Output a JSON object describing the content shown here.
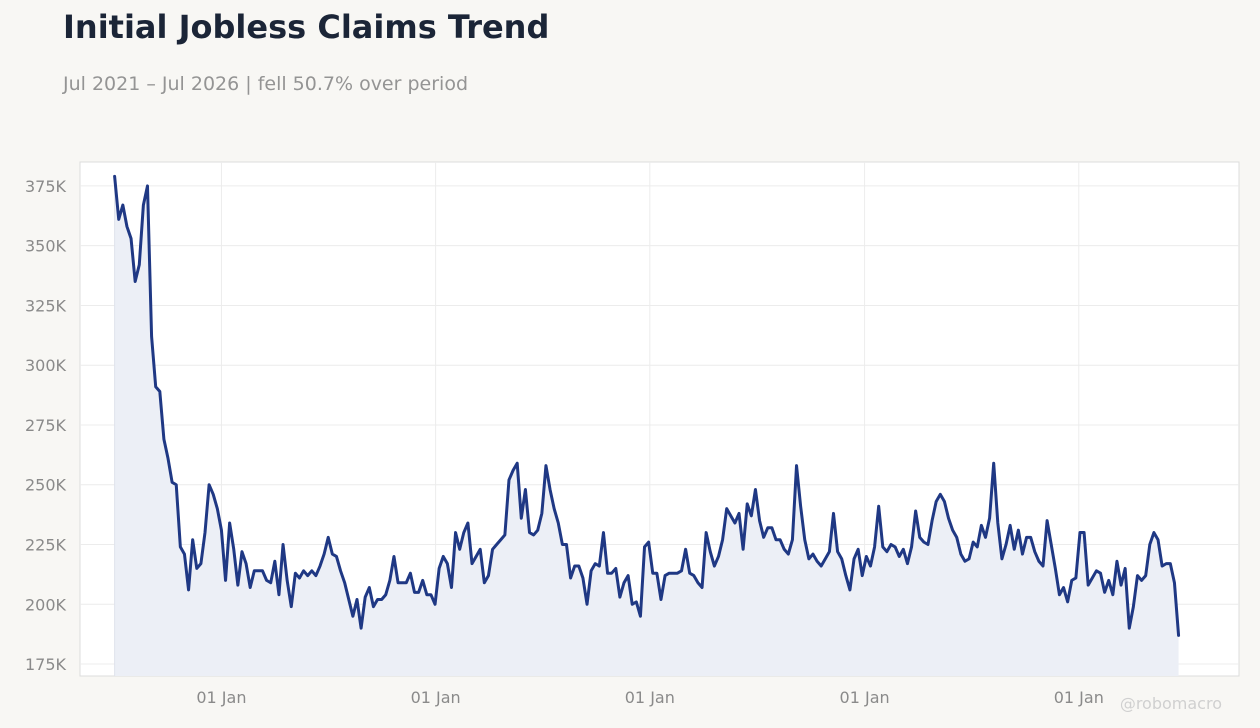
{
  "header": {
    "title": "Initial Jobless Claims Trend",
    "subtitle": "Jul 2021 – Jul 2026 | fell 50.7% over period"
  },
  "credit": "@robomacro",
  "colors": {
    "line": "#1f3884",
    "fill": "#eceff6",
    "background": "#f8f7f4",
    "plot_background": "#ffffff",
    "grid": "#ececec",
    "tick_text": "#8a8a8a"
  },
  "chart_data": {
    "type": "area",
    "grid": true,
    "legend": "none",
    "ylim": [
      170000,
      385000
    ],
    "xlim": [
      "2021-05-05",
      "2026-10-01"
    ],
    "y_ticks": [
      {
        "value": 175000,
        "label": "175K"
      },
      {
        "value": 200000,
        "label": "200K"
      },
      {
        "value": 225000,
        "label": "225K"
      },
      {
        "value": 250000,
        "label": "250K"
      },
      {
        "value": 275000,
        "label": "275K"
      },
      {
        "value": 300000,
        "label": "300K"
      },
      {
        "value": 325000,
        "label": "325K"
      },
      {
        "value": 350000,
        "label": "350K"
      },
      {
        "value": 375000,
        "label": "375K"
      }
    ],
    "x_ticks": [
      {
        "date": "2022-01-01",
        "label": "01 Jan"
      },
      {
        "date": "2023-01-01",
        "label": "01 Jan"
      },
      {
        "date": "2024-01-01",
        "label": "01 Jan"
      },
      {
        "date": "2025-01-01",
        "label": "01 Jan"
      },
      {
        "date": "2026-01-01",
        "label": "01 Jan"
      }
    ],
    "series": [
      {
        "start": "2021-07-03",
        "interval_days": 7,
        "values": [
          379000,
          361000,
          367000,
          358000,
          353000,
          335000,
          342000,
          367000,
          375000,
          312000,
          291000,
          289000,
          269000,
          261000,
          251000,
          250000,
          224000,
          221000,
          206000,
          227000,
          215000,
          217000,
          230000,
          250000,
          246000,
          240000,
          231000,
          210000,
          234000,
          223000,
          208000,
          222000,
          217000,
          207000,
          214000,
          214000,
          214000,
          210000,
          209000,
          218000,
          204000,
          225000,
          210000,
          199000,
          213000,
          211000,
          214000,
          212000,
          214000,
          212000,
          216000,
          221000,
          228000,
          221000,
          220000,
          214000,
          209000,
          202000,
          195000,
          202000,
          190000,
          203000,
          207000,
          199000,
          202000,
          202000,
          204000,
          210000,
          220000,
          209000,
          209000,
          209000,
          213000,
          205000,
          205000,
          210000,
          204000,
          204000,
          200000,
          215000,
          220000,
          217000,
          207000,
          230000,
          223000,
          230000,
          234000,
          217000,
          220000,
          223000,
          209000,
          212000,
          223000,
          225000,
          227000,
          229000,
          252000,
          256000,
          259000,
          236000,
          248000,
          230000,
          229000,
          231000,
          238000,
          258000,
          248000,
          240000,
          234000,
          225000,
          225000,
          211000,
          216000,
          216000,
          211000,
          200000,
          214000,
          217000,
          216000,
          230000,
          213000,
          213000,
          215000,
          203000,
          209000,
          212000,
          200000,
          201000,
          195000,
          224000,
          226000,
          213000,
          213000,
          202000,
          212000,
          213000,
          213000,
          213000,
          214000,
          223000,
          213000,
          212000,
          209000,
          207000,
          230000,
          222000,
          216000,
          220000,
          227000,
          240000,
          237000,
          234000,
          238000,
          223000,
          242000,
          237000,
          248000,
          235000,
          228000,
          232000,
          232000,
          227000,
          227000,
          223000,
          221000,
          227000,
          258000,
          241000,
          227000,
          219000,
          221000,
          218000,
          216000,
          219000,
          222000,
          238000,
          222000,
          219000,
          212000,
          206000,
          219000,
          223000,
          212000,
          220000,
          216000,
          224000,
          241000,
          224000,
          222000,
          225000,
          224000,
          220000,
          223000,
          217000,
          224000,
          239000,
          228000,
          226000,
          225000,
          235000,
          243000,
          246000,
          243000,
          236000,
          231000,
          228000,
          221000,
          218000,
          219000,
          226000,
          224000,
          233000,
          228000,
          236000,
          259000,
          234000,
          219000,
          225000,
          233000,
          223000,
          231000,
          221000,
          228000,
          228000,
          222000,
          218000,
          216000,
          235000,
          225000,
          215000,
          204000,
          207000,
          201000,
          210000,
          211000,
          230000,
          230000,
          208000,
          211000,
          214000,
          213000,
          205000,
          210000,
          204000,
          218000,
          208000,
          215000,
          190000,
          199000,
          212000,
          210000,
          212000,
          225000,
          230000,
          227000,
          216000,
          217000,
          217000,
          209000,
          187000
        ]
      }
    ]
  }
}
